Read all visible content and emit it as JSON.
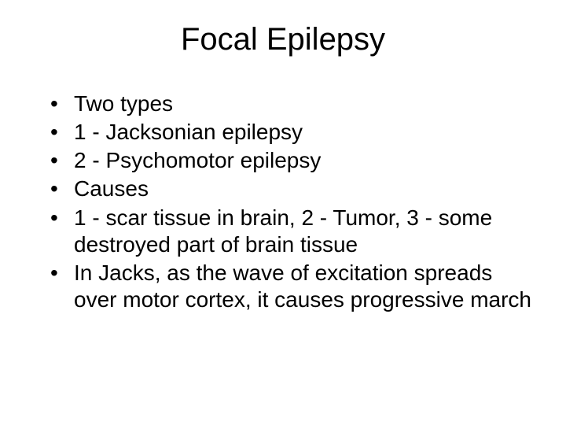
{
  "slide": {
    "title": "Focal Epilepsy",
    "bullets": [
      "Two types",
      "1 - Jacksonian epilepsy",
      "2 - Psychomotor epilepsy",
      "Causes",
      "1 - scar tissue in brain, 2 - Tumor, 3 - some destroyed part of brain tissue",
      "In Jacks, as the wave of excitation spreads over motor cortex, it causes progressive march"
    ],
    "colors": {
      "background": "#ffffff",
      "text": "#000000"
    },
    "typography": {
      "title_fontsize": 40,
      "body_fontsize": 28,
      "font_family": "Arial"
    }
  }
}
